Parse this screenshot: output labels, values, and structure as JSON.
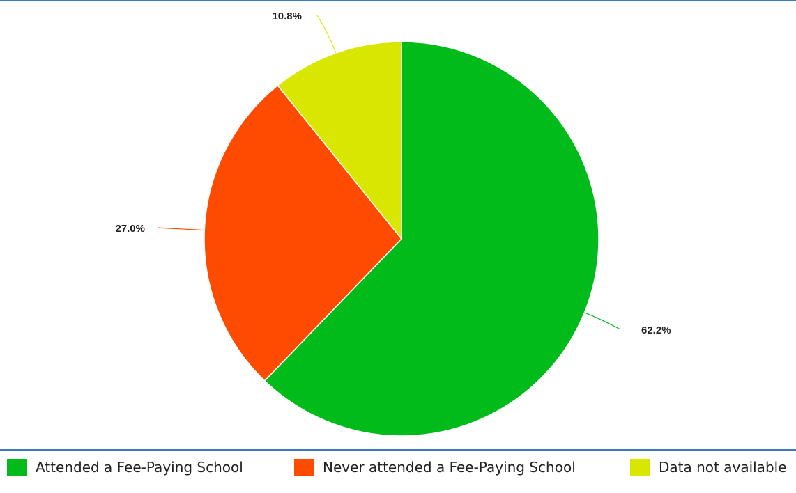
{
  "chart_data": {
    "type": "pie",
    "title": "",
    "slices": [
      {
        "name": "Attended a Fee-Paying School",
        "value": 62.2,
        "label": "62.2%",
        "color": "#00bb1a"
      },
      {
        "name": "Never attended a Fee-Paying School",
        "value": 27.0,
        "label": "27.0%",
        "color": "#ff4b00"
      },
      {
        "name": "Data not available",
        "value": 10.8,
        "label": "10.8%",
        "color": "#d9e600"
      }
    ],
    "start_angle": "12 o'clock",
    "direction": "clockwise",
    "legend_placement": "bottom"
  },
  "legend": {
    "items": [
      {
        "label": "Attended a Fee-Paying School",
        "color": "#00bb1a"
      },
      {
        "label": "Never attended a Fee-Paying School",
        "color": "#ff4b00"
      },
      {
        "label": "Data not available",
        "color": "#d9e600"
      }
    ]
  },
  "colors": {
    "frame_rule": "#3b78c4",
    "slice_border": "#ffffff"
  }
}
